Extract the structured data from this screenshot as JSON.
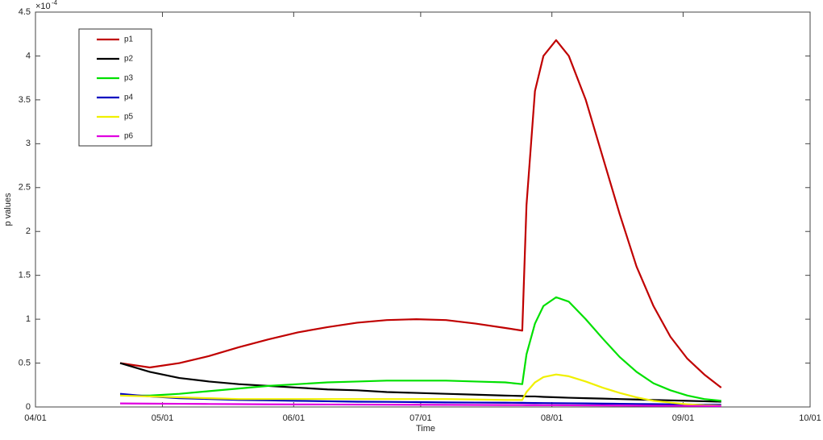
{
  "chart_data": {
    "type": "line",
    "x_label": "Time",
    "y_label": "p values",
    "y_exponent": {
      "base": "×10",
      "power": "-4"
    },
    "x": [
      "04/21",
      "04/28",
      "05/05",
      "05/12",
      "05/19",
      "05/26",
      "06/02",
      "06/09",
      "06/16",
      "06/23",
      "06/30",
      "07/07",
      "07/14",
      "07/21",
      "07/25",
      "07/26",
      "07/28",
      "07/30",
      "08/02",
      "08/05",
      "08/09",
      "08/13",
      "08/17",
      "08/21",
      "08/25",
      "08/29",
      "09/02",
      "09/06",
      "09/10"
    ],
    "series": [
      {
        "name": "p1",
        "color": "#c00000",
        "values": [
          0.5,
          0.45,
          0.5,
          0.58,
          0.68,
          0.77,
          0.85,
          0.91,
          0.96,
          0.99,
          1.0,
          0.99,
          0.95,
          0.9,
          0.87,
          2.3,
          3.6,
          4.0,
          4.18,
          4.0,
          3.5,
          2.85,
          2.2,
          1.6,
          1.15,
          0.8,
          0.55,
          0.37,
          0.22
        ]
      },
      {
        "name": "p2",
        "color": "#000000",
        "values": [
          0.5,
          0.4,
          0.33,
          0.29,
          0.26,
          0.24,
          0.22,
          0.2,
          0.19,
          0.17,
          0.16,
          0.15,
          0.14,
          0.13,
          0.125,
          0.12,
          0.12,
          0.115,
          0.11,
          0.105,
          0.1,
          0.095,
          0.09,
          0.085,
          0.08,
          0.075,
          0.07,
          0.065,
          0.06
        ]
      },
      {
        "name": "p3",
        "color": "#00e000",
        "values": [
          0.13,
          0.13,
          0.15,
          0.18,
          0.21,
          0.24,
          0.26,
          0.28,
          0.29,
          0.3,
          0.3,
          0.3,
          0.29,
          0.28,
          0.26,
          0.6,
          0.95,
          1.15,
          1.25,
          1.2,
          1.0,
          0.78,
          0.57,
          0.4,
          0.27,
          0.19,
          0.13,
          0.09,
          0.07
        ]
      },
      {
        "name": "p4",
        "color": "#0000c0",
        "values": [
          0.15,
          0.12,
          0.1,
          0.09,
          0.08,
          0.075,
          0.07,
          0.065,
          0.06,
          0.058,
          0.055,
          0.052,
          0.05,
          0.048,
          0.047,
          0.046,
          0.045,
          0.044,
          0.043,
          0.042,
          0.04,
          0.038,
          0.036,
          0.034,
          0.032,
          0.03,
          0.028,
          0.026,
          0.025
        ]
      },
      {
        "name": "p5",
        "color": "#f0f000",
        "values": [
          0.13,
          0.12,
          0.11,
          0.1,
          0.09,
          0.09,
          0.09,
          0.09,
          0.09,
          0.09,
          0.09,
          0.09,
          0.085,
          0.08,
          0.08,
          0.17,
          0.28,
          0.34,
          0.37,
          0.35,
          0.29,
          0.22,
          0.16,
          0.11,
          0.07,
          0.05,
          0.03,
          0.02,
          0.015
        ]
      },
      {
        "name": "p6",
        "color": "#e000e0",
        "values": [
          0.04,
          0.038,
          0.036,
          0.034,
          0.032,
          0.03,
          0.029,
          0.028,
          0.027,
          0.026,
          0.025,
          0.024,
          0.023,
          0.022,
          0.022,
          0.021,
          0.021,
          0.02,
          0.02,
          0.019,
          0.018,
          0.017,
          0.016,
          0.015,
          0.014,
          0.013,
          0.012,
          0.011,
          0.01
        ]
      }
    ],
    "xlim": [
      "04/01",
      "10/01"
    ],
    "xticks": [
      "04/01",
      "05/01",
      "06/01",
      "07/01",
      "08/01",
      "09/01",
      "10/01"
    ],
    "ylim": [
      0,
      4.5
    ],
    "yticks": [
      0,
      0.5,
      1,
      1.5,
      2,
      2.5,
      3,
      3.5,
      4,
      4.5
    ],
    "grid": false,
    "legend": "upper-left"
  }
}
